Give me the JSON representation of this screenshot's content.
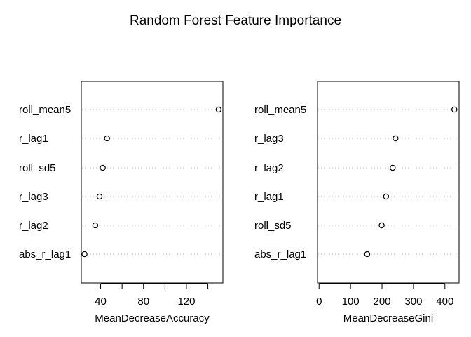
{
  "chart_data": {
    "title": "Random Forest Feature Importance",
    "panels": [
      {
        "type": "scatter",
        "xlabel": "MeanDecreaseAccuracy",
        "categories": [
          "roll_mean5",
          "r_lag1",
          "roll_sd5",
          "r_lag3",
          "r_lag2",
          "abs_r_lag1"
        ],
        "values": [
          150,
          46,
          42,
          39,
          35,
          25
        ],
        "xlim": [
          22,
          154
        ],
        "ticks": [
          40,
          80,
          120
        ],
        "minor_ticks": [
          60,
          100,
          140
        ],
        "grid": "dotted-horizontal"
      },
      {
        "type": "scatter",
        "xlabel": "MeanDecreaseGini",
        "categories": [
          "roll_mean5",
          "r_lag3",
          "r_lag2",
          "r_lag1",
          "roll_sd5",
          "abs_r_lag1"
        ],
        "values": [
          430,
          243,
          234,
          213,
          199,
          153
        ],
        "xlim": [
          -5,
          445
        ],
        "ticks": [
          0,
          100,
          200,
          300,
          400
        ],
        "minor_ticks": [],
        "grid": "dotted-horizontal"
      }
    ]
  }
}
